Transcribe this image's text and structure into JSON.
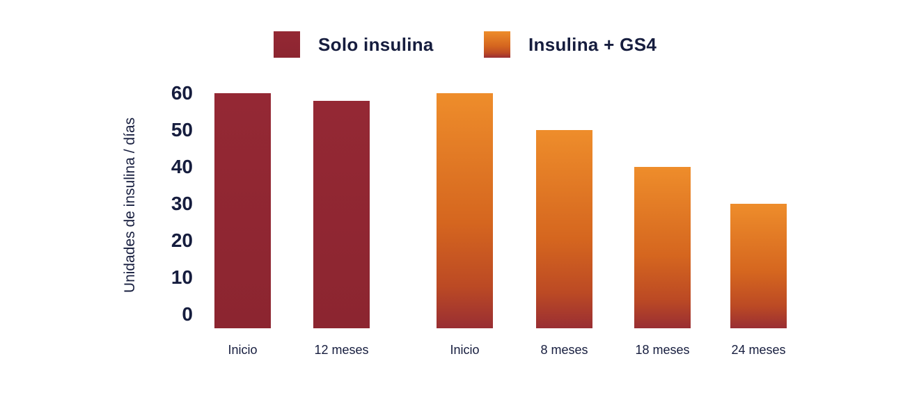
{
  "colors": {
    "background": "#ffffff",
    "text_navy": "#161d3e",
    "solo_bar_top": "#942834",
    "solo_bar_bottom": "#8c2530",
    "combo_bar_top": "#ee8d2b",
    "combo_bar_mid": "#d5661f",
    "combo_bar_low": "#bc4a24",
    "combo_bar_bottom": "#992e33"
  },
  "chart_data": {
    "type": "bar",
    "title": "",
    "xlabel": "",
    "ylabel": "Unidades de insulina / días",
    "ylim": [
      0,
      60
    ],
    "yticks": [
      60,
      50,
      40,
      30,
      20,
      10,
      0
    ],
    "grid": false,
    "legend_position": "top",
    "legend": [
      {
        "label": "Solo insulina",
        "color": "#942834"
      },
      {
        "label": "Insulina + GS4",
        "color": "#ee8d2b"
      }
    ],
    "series": [
      {
        "name": "Solo insulina",
        "categories": [
          "Inicio",
          "12 meses"
        ],
        "values": [
          60,
          58
        ]
      },
      {
        "name": "Insulina + GS4",
        "categories": [
          "Inicio",
          "8 meses",
          "18 meses",
          "24 meses"
        ],
        "values": [
          60,
          50,
          40,
          30
        ]
      }
    ]
  }
}
